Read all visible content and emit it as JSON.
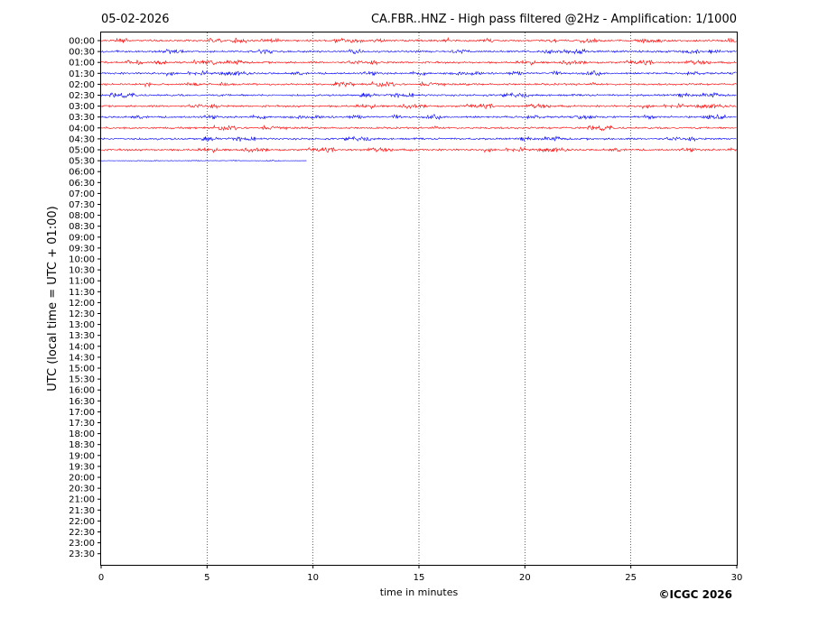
{
  "chart_data": {
    "type": "line",
    "subtype": "helicorder",
    "date": "05-02-2026",
    "title": "CA.FBR..HNZ - High pass filtered @2Hz - Amplification: 1/1000",
    "xlabel": "time in minutes",
    "ylabel": "UTC (local time = UTC + 01:00)",
    "xlim": [
      0,
      30
    ],
    "x_ticks": [
      0,
      5,
      10,
      15,
      20,
      25,
      30
    ],
    "x_tick_labels": [
      "0",
      "5",
      "10",
      "15",
      "20",
      "25",
      "30"
    ],
    "vertical_gridlines_at": [
      5,
      10,
      15,
      20,
      25
    ],
    "y_tick_labels": [
      "00:00",
      "00:30",
      "01:00",
      "01:30",
      "02:00",
      "02:30",
      "03:00",
      "03:30",
      "04:00",
      "04:30",
      "05:00",
      "05:30",
      "06:00",
      "06:30",
      "07:00",
      "07:30",
      "08:00",
      "08:30",
      "09:00",
      "09:30",
      "10:00",
      "10:30",
      "11:00",
      "11:30",
      "12:00",
      "12:30",
      "13:00",
      "13:30",
      "14:00",
      "14:30",
      "15:00",
      "15:30",
      "16:00",
      "16:30",
      "17:00",
      "17:30",
      "18:00",
      "18:30",
      "19:00",
      "19:30",
      "20:00",
      "20:30",
      "21:00",
      "21:30",
      "22:00",
      "22:30",
      "23:00",
      "23:30"
    ],
    "trace_colors": [
      "#ff0000",
      "#0000ff"
    ],
    "traces": [
      {
        "row": "00:00",
        "color": "#ff0000",
        "x_start": 0,
        "x_end": 30
      },
      {
        "row": "00:30",
        "color": "#0000ff",
        "x_start": 0,
        "x_end": 30
      },
      {
        "row": "01:00",
        "color": "#ff0000",
        "x_start": 0,
        "x_end": 30
      },
      {
        "row": "01:30",
        "color": "#0000ff",
        "x_start": 0,
        "x_end": 30
      },
      {
        "row": "02:00",
        "color": "#ff0000",
        "x_start": 0,
        "x_end": 30
      },
      {
        "row": "02:30",
        "color": "#0000ff",
        "x_start": 0,
        "x_end": 30
      },
      {
        "row": "03:00",
        "color": "#ff0000",
        "x_start": 0,
        "x_end": 30
      },
      {
        "row": "03:30",
        "color": "#0000ff",
        "x_start": 0,
        "x_end": 30
      },
      {
        "row": "04:00",
        "color": "#ff0000",
        "x_start": 0,
        "x_end": 30
      },
      {
        "row": "04:30",
        "color": "#0000ff",
        "x_start": 0,
        "x_end": 30
      },
      {
        "row": "05:00",
        "color": "#ff0000",
        "x_start": 0,
        "x_end": 30
      },
      {
        "row": "05:30",
        "color": "#0000ff",
        "x_start": 0,
        "x_end": 9.7
      }
    ],
    "grid": "vertical dotted",
    "legend": "none"
  },
  "copyright": "©ICGC 2026"
}
